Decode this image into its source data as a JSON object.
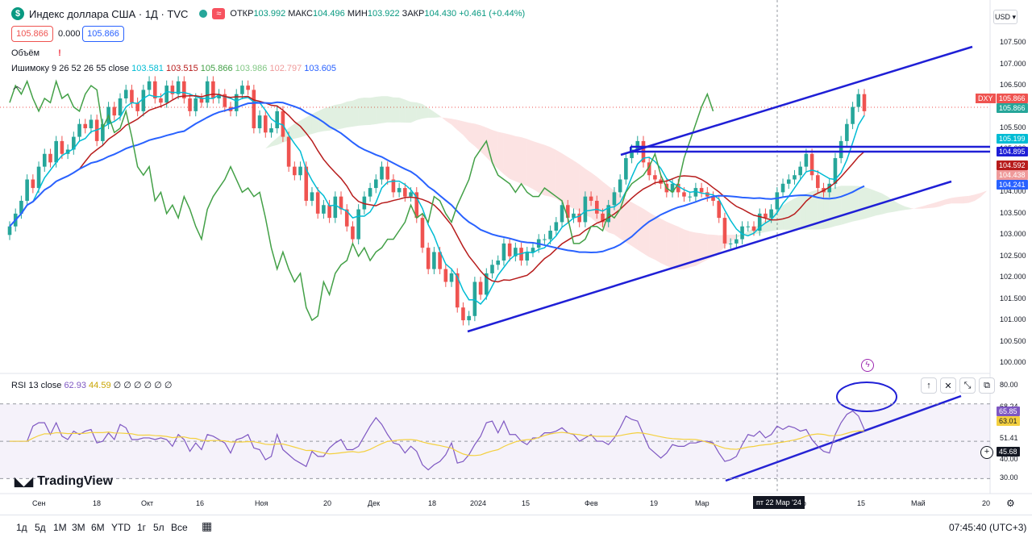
{
  "header": {
    "logo_glyph": "$",
    "symbol_title": "Индекс доллара США · 1Д · TVC",
    "open_label": "ОТКР",
    "open_value": "103.992",
    "high_label": "МАКС",
    "high_value": "104.496",
    "low_label": "МИН",
    "low_value": "103.922",
    "close_label": "ЗАКР",
    "close_value": "104.430",
    "change": "+0.461 (+0.44%)"
  },
  "price_boxes": {
    "bid": "105.866",
    "spread": "0.000",
    "ask": "105.866"
  },
  "volume_label": "Объём",
  "ichimoku": {
    "label": "Ишимоку 9 26 52 26 55 close",
    "v1": "103.581",
    "v2": "103.515",
    "v3": "105.866",
    "v4": "103.986",
    "v5": "102.797",
    "v6": "103.605"
  },
  "rsi": {
    "label": "RSI 13 close",
    "v1": "62.93",
    "v2": "44.59",
    "zeros": "∅ ∅ ∅ ∅ ∅ ∅"
  },
  "currency": "USD",
  "price_axis": [
    "107.500",
    "107.000",
    "106.500",
    "106.000",
    "105.500",
    "105.000",
    "104.500",
    "104.000",
    "103.500",
    "103.000",
    "102.500",
    "102.000",
    "101.500",
    "101.000",
    "100.500",
    "100.000"
  ],
  "rsi_axis": [
    "80.00",
    "68.24",
    "51.41",
    "40.00",
    "30.00"
  ],
  "price_badges": {
    "dxy_label": "DXY",
    "dxy": "105.866",
    "last": "105.866",
    "tenkan": "105.199",
    "level": "104.895",
    "kijun": "104.592",
    "span": "104.438",
    "ma": "104.241"
  },
  "rsi_badges": {
    "rsi": "65.85",
    "ma": "63.01",
    "cross": "45.68"
  },
  "x_ticks": [
    "Сен",
    "18",
    "Окт",
    "16",
    "Ноя",
    "20",
    "Дек",
    "18",
    "2024",
    "15",
    "Фев",
    "19",
    "Мар",
    "пр",
    "15",
    "Май",
    "20"
  ],
  "x_cursor": "пт 22 Мар '24",
  "bottom": {
    "timeframes": [
      "1д",
      "5д",
      "1М",
      "3М",
      "6М",
      "YTD",
      "1г",
      "5л",
      "Все"
    ],
    "clock": "07:45:40 (UTC+3)"
  },
  "logo_text": "TradingView",
  "colors": {
    "up": "#26a69a",
    "down": "#ef5350",
    "tenkan": "#00bcd4",
    "kijun": "#b71c1c",
    "ma": "#2962ff",
    "lagging": "#43a047",
    "drawn": "#1f1fd6",
    "rsi": "#7e57c2",
    "rsi_ma": "#f4d03f"
  },
  "chart_data": {
    "type": "candlestick",
    "y_range": [
      100.0,
      107.75
    ],
    "close": [
      103.2,
      103.5,
      103.8,
      104.3,
      104.1,
      104.6,
      104.9,
      104.7,
      105.2,
      104.9,
      105.0,
      105.3,
      105.6,
      105.5,
      105.7,
      105.2,
      105.6,
      106.0,
      105.8,
      106.2,
      106.4,
      106.1,
      105.9,
      106.4,
      106.6,
      106.2,
      106.1,
      106.5,
      106.3,
      106.6,
      106.2,
      105.9,
      106.2,
      106.1,
      106.6,
      106.2,
      106.3,
      106.0,
      105.9,
      106.3,
      106.5,
      106.4,
      105.5,
      105.8,
      105.4,
      105.5,
      105.9,
      105.3,
      104.6,
      104.4,
      104.6,
      103.8,
      104.0,
      103.5,
      103.7,
      103.4,
      103.9,
      103.6,
      103.2,
      102.9,
      103.6,
      103.9,
      104.1,
      104.3,
      104.6,
      104.3,
      104.0,
      104.1,
      103.9,
      104.0,
      103.4,
      102.7,
      102.2,
      102.6,
      102.2,
      101.9,
      102.1,
      101.3,
      101.0,
      101.1,
      101.9,
      101.6,
      102.1,
      102.3,
      102.4,
      102.8,
      102.5,
      102.7,
      102.4,
      102.6,
      102.7,
      102.9,
      102.9,
      103.1,
      103.3,
      103.7,
      103.4,
      103.5,
      103.3,
      103.9,
      103.8,
      103.5,
      103.3,
      103.7,
      104.0,
      104.3,
      104.8,
      105.0,
      105.2,
      104.7,
      104.4,
      104.3,
      104.2,
      104.0,
      104.2,
      104.0,
      103.9,
      103.9,
      104.1,
      104.0,
      103.9,
      103.8,
      103.4,
      102.8,
      102.8,
      102.9,
      103.2,
      103.2,
      103.1,
      103.5,
      103.4,
      103.6,
      104.0,
      104.2,
      104.3,
      104.4,
      104.6,
      104.9,
      104.4,
      104.1,
      104.0,
      104.2,
      104.8,
      105.2,
      105.6,
      106.0,
      106.3,
      105.9
    ]
  }
}
